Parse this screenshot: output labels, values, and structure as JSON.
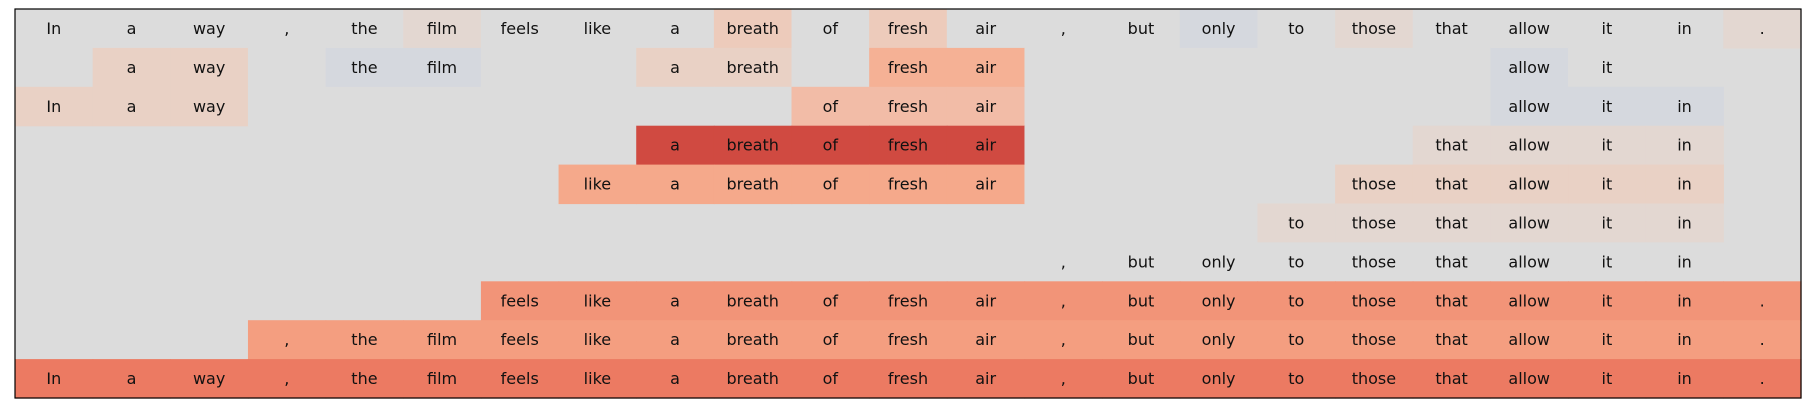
{
  "chart_data": {
    "type": "heatmap",
    "title": "",
    "xlabel": "",
    "ylabel": "",
    "tokens": [
      "In",
      "a",
      "way",
      ",",
      "the",
      "film",
      "feels",
      "like",
      "a",
      "breath",
      "of",
      "fresh",
      "air",
      ",",
      "but",
      "only",
      "to",
      "those",
      "that",
      "allow",
      "it",
      "in",
      "."
    ],
    "colors": {
      "g": "#dcdcdc",
      "b": "#d5d8de",
      "t1": "#e3d7d1",
      "t2": "#e9d1c5",
      "t3": "#edcbbb",
      "t4": "#f2bca7",
      "t5": "#f5b195",
      "m1": "#f5a98b",
      "m2": "#f49e80",
      "m3": "#f29478",
      "m4": "#ee8b6e",
      "m5": "#ec7a62",
      "r": "#d04a41"
    },
    "rows": [
      {
        "span": [
          0,
          22
        ],
        "text": [
          "In",
          "a",
          "way",
          ",",
          "the",
          "film",
          "feels",
          "like",
          "a",
          "breath",
          "of",
          "fresh",
          "air",
          ",",
          "but",
          "only",
          "to",
          "those",
          "that",
          "allow",
          "it",
          "in",
          "."
        ],
        "shade": [
          "g",
          "g",
          "g",
          "g",
          "g",
          "t1",
          "g",
          "g",
          "g",
          "t3",
          "g",
          "t3",
          "g",
          "g",
          "g",
          "b",
          "g",
          "t1",
          "g",
          "g",
          "g",
          "g",
          "t1"
        ]
      },
      {
        "span": [
          1,
          20
        ],
        "text": [
          "a",
          "way",
          "",
          "the",
          "film",
          "",
          "",
          "a",
          "breath",
          "",
          "fresh",
          "air",
          "",
          "",
          "",
          "",
          "",
          "",
          "allow",
          "it"
        ],
        "shade": [
          "t2",
          "t2",
          "g",
          "b",
          "b",
          "g",
          "g",
          "t2",
          "t2",
          "g",
          "t5",
          "t5",
          "g",
          "g",
          "g",
          "g",
          "g",
          "g",
          "b",
          "g"
        ]
      },
      {
        "span": [
          0,
          21
        ],
        "text": [
          "In",
          "a",
          "way",
          "",
          "",
          "",
          "",
          "",
          "",
          "",
          "of",
          "fresh",
          "air",
          "",
          "",
          "",
          "",
          "",
          "",
          "allow",
          "it",
          "in"
        ],
        "shade": [
          "t2",
          "t2",
          "t2",
          "g",
          "g",
          "g",
          "g",
          "g",
          "g",
          "g",
          "t4",
          "t4",
          "t4",
          "g",
          "g",
          "g",
          "g",
          "g",
          "g",
          "b",
          "b",
          "b"
        ]
      },
      {
        "span": [
          8,
          21
        ],
        "text": [
          "a",
          "breath",
          "of",
          "fresh",
          "air",
          "",
          "",
          "",
          "",
          "",
          "that",
          "allow",
          "it",
          "in"
        ],
        "shade": [
          "r",
          "r",
          "r",
          "r",
          "r",
          "g",
          "g",
          "g",
          "g",
          "g",
          "t1",
          "t1",
          "t1",
          "t1"
        ]
      },
      {
        "span": [
          7,
          21
        ],
        "text": [
          "like",
          "a",
          "breath",
          "of",
          "fresh",
          "air",
          "",
          "",
          "",
          "",
          "those",
          "that",
          "allow",
          "it",
          "in"
        ],
        "shade": [
          "m1",
          "m1",
          "m1",
          "m1",
          "m1",
          "m1",
          "g",
          "g",
          "g",
          "g",
          "t2",
          "t2",
          "t2",
          "t2",
          "t2"
        ]
      },
      {
        "span": [
          16,
          21
        ],
        "text": [
          "to",
          "those",
          "that",
          "allow",
          "it",
          "in"
        ],
        "shade": [
          "t1",
          "t1",
          "t1",
          "t1",
          "t1",
          "t1"
        ]
      },
      {
        "span": [
          13,
          21
        ],
        "text": [
          ",",
          "but",
          "only",
          "to",
          "those",
          "that",
          "allow",
          "it",
          "in"
        ],
        "shade": [
          "g",
          "g",
          "g",
          "g",
          "g",
          "g",
          "g",
          "g",
          "g"
        ]
      },
      {
        "span": [
          6,
          22
        ],
        "text": [
          "feels",
          "like",
          "a",
          "breath",
          "of",
          "fresh",
          "air",
          ",",
          "but",
          "only",
          "to",
          "those",
          "that",
          "allow",
          "it",
          "in",
          "."
        ],
        "shade": [
          "m3",
          "m3",
          "m3",
          "m3",
          "m3",
          "m3",
          "m3",
          "m3",
          "m3",
          "m3",
          "m3",
          "m3",
          "m3",
          "m3",
          "m3",
          "m3",
          "m3"
        ]
      },
      {
        "span": [
          3,
          22
        ],
        "text": [
          ",",
          "the",
          "film",
          "feels",
          "like",
          "a",
          "breath",
          "of",
          "fresh",
          "air",
          ",",
          "but",
          "only",
          "to",
          "those",
          "that",
          "allow",
          "it",
          "in",
          "."
        ],
        "shade": [
          "m2",
          "m2",
          "m2",
          "m2",
          "m2",
          "m2",
          "m2",
          "m2",
          "m2",
          "m2",
          "m2",
          "m2",
          "m2",
          "m2",
          "m2",
          "m2",
          "m2",
          "m2",
          "m2",
          "m2"
        ]
      },
      {
        "span": [
          0,
          22
        ],
        "text": [
          "In",
          "a",
          "way",
          ",",
          "the",
          "film",
          "feels",
          "like",
          "a",
          "breath",
          "of",
          "fresh",
          "air",
          ",",
          "but",
          "only",
          "to",
          "those",
          "that",
          "allow",
          "it",
          "in",
          "."
        ],
        "shade": [
          "m5",
          "m5",
          "m5",
          "m5",
          "m5",
          "m5",
          "m5",
          "m5",
          "m5",
          "m5",
          "m5",
          "m5",
          "m5",
          "m5",
          "m5",
          "m5",
          "m5",
          "m5",
          "m5",
          "m5",
          "m5",
          "m5",
          "m5"
        ]
      }
    ]
  }
}
